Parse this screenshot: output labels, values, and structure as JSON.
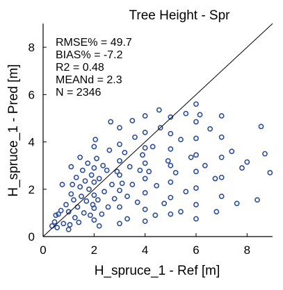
{
  "chart_data": {
    "type": "scatter",
    "title": "Tree Height - Spr",
    "xlabel": "H_spruce_1 - Ref [m]",
    "ylabel": "H_spruce_1 - Pred [m]",
    "xlim": [
      0,
      9
    ],
    "ylim": [
      0,
      9
    ],
    "xticks": [
      0,
      2,
      4,
      6,
      8
    ],
    "yticks": [
      0,
      2,
      4,
      6,
      8
    ],
    "stats": [
      "RMSE% = 49.7",
      "BIAS% = -7.2",
      "R2 = 0.48",
      "MEANd = 2.3",
      "N = 2346"
    ],
    "reference_line": [
      [
        0,
        0
      ],
      [
        9,
        9
      ]
    ],
    "marker": "open-circle",
    "series_color": "#2b4d9c",
    "grid": false,
    "points": [
      [
        0.35,
        0.45
      ],
      [
        0.45,
        0.62
      ],
      [
        0.55,
        0.38
      ],
      [
        0.6,
        0.95
      ],
      [
        0.7,
        1.1
      ],
      [
        0.8,
        0.55
      ],
      [
        0.9,
        1.35
      ],
      [
        1.0,
        1.05
      ],
      [
        1.05,
        0.5
      ],
      [
        1.1,
        1.8
      ],
      [
        1.15,
        2.2
      ],
      [
        1.2,
        1.55
      ],
      [
        1.25,
        0.8
      ],
      [
        1.3,
        2.5
      ],
      [
        1.35,
        1.25
      ],
      [
        1.4,
        0.6
      ],
      [
        1.45,
        2.1
      ],
      [
        1.5,
        1.7
      ],
      [
        1.55,
        2.8
      ],
      [
        1.6,
        1.0
      ],
      [
        1.65,
        2.35
      ],
      [
        1.7,
        1.5
      ],
      [
        1.75,
        3.1
      ],
      [
        1.8,
        2.0
      ],
      [
        1.85,
        0.9
      ],
      [
        1.9,
        2.6
      ],
      [
        1.95,
        1.35
      ],
      [
        2.0,
        3.8
      ],
      [
        2.0,
        2.9
      ],
      [
        2.0,
        2.3
      ],
      [
        2.0,
        1.75
      ],
      [
        2.0,
        1.2
      ],
      [
        2.0,
        0.7
      ],
      [
        2.05,
        4.1
      ],
      [
        2.1,
        3.3
      ],
      [
        2.15,
        1.55
      ],
      [
        2.2,
        2.45
      ],
      [
        2.3,
        0.95
      ],
      [
        2.35,
        3.0
      ],
      [
        2.4,
        1.9
      ],
      [
        2.5,
        2.8
      ],
      [
        2.55,
        1.25
      ],
      [
        2.6,
        3.65
      ],
      [
        2.7,
        2.2
      ],
      [
        2.8,
        1.6
      ],
      [
        2.9,
        2.75
      ],
      [
        3.0,
        4.6
      ],
      [
        3.0,
        3.9
      ],
      [
        3.0,
        3.2
      ],
      [
        3.0,
        2.6
      ],
      [
        3.0,
        1.95
      ],
      [
        3.0,
        1.25
      ],
      [
        3.0,
        0.55
      ],
      [
        3.1,
        2.25
      ],
      [
        3.2,
        3.55
      ],
      [
        3.3,
        1.7
      ],
      [
        3.4,
        2.95
      ],
      [
        3.5,
        2.2
      ],
      [
        3.6,
        4.2
      ],
      [
        3.7,
        1.45
      ],
      [
        3.8,
        2.8
      ],
      [
        3.9,
        3.45
      ],
      [
        4.0,
        5.1
      ],
      [
        4.0,
        4.4
      ],
      [
        4.0,
        3.75
      ],
      [
        4.0,
        3.1
      ],
      [
        4.0,
        2.45
      ],
      [
        4.0,
        1.85
      ],
      [
        4.0,
        1.15
      ],
      [
        4.0,
        0.65
      ],
      [
        4.15,
        2.75
      ],
      [
        4.3,
        3.8
      ],
      [
        4.45,
        2.15
      ],
      [
        4.6,
        4.6
      ],
      [
        4.75,
        1.4
      ],
      [
        4.9,
        3.2
      ],
      [
        5.0,
        5.05
      ],
      [
        5.0,
        4.35
      ],
      [
        5.0,
        3.7
      ],
      [
        5.0,
        3.0
      ],
      [
        5.0,
        2.3
      ],
      [
        5.0,
        1.65
      ],
      [
        5.0,
        0.95
      ],
      [
        5.2,
        2.7
      ],
      [
        5.4,
        4.1
      ],
      [
        5.6,
        1.9
      ],
      [
        5.8,
        3.35
      ],
      [
        6.0,
        5.6
      ],
      [
        6.0,
        4.85
      ],
      [
        6.0,
        4.15
      ],
      [
        6.0,
        3.45
      ],
      [
        6.0,
        2.75
      ],
      [
        6.0,
        2.05
      ],
      [
        6.0,
        1.35
      ],
      [
        6.0,
        0.75
      ],
      [
        6.35,
        3.0
      ],
      [
        6.55,
        4.55
      ],
      [
        6.75,
        2.45
      ],
      [
        7.0,
        5.1
      ],
      [
        7.0,
        4.2
      ],
      [
        7.0,
        3.35
      ],
      [
        7.0,
        2.5
      ],
      [
        7.0,
        1.7
      ],
      [
        7.4,
        3.6
      ],
      [
        7.8,
        2.9
      ],
      [
        8.0,
        3.15
      ],
      [
        8.4,
        1.55
      ],
      [
        8.55,
        4.65
      ],
      [
        8.7,
        3.5
      ],
      [
        8.9,
        2.7
      ],
      [
        1.0,
        0.3
      ],
      [
        0.5,
        0.9
      ],
      [
        0.75,
        2.2
      ],
      [
        1.1,
        2.95
      ],
      [
        1.45,
        3.35
      ],
      [
        2.65,
        4.85
      ],
      [
        3.5,
        4.9
      ],
      [
        4.55,
        5.35
      ],
      [
        5.6,
        5.2
      ],
      [
        6.15,
        5.15
      ],
      [
        2.2,
        0.45
      ],
      [
        3.3,
        0.75
      ],
      [
        4.4,
        0.9
      ],
      [
        5.4,
        1.05
      ],
      [
        6.8,
        1.05
      ],
      [
        7.6,
        1.4
      ]
    ]
  }
}
